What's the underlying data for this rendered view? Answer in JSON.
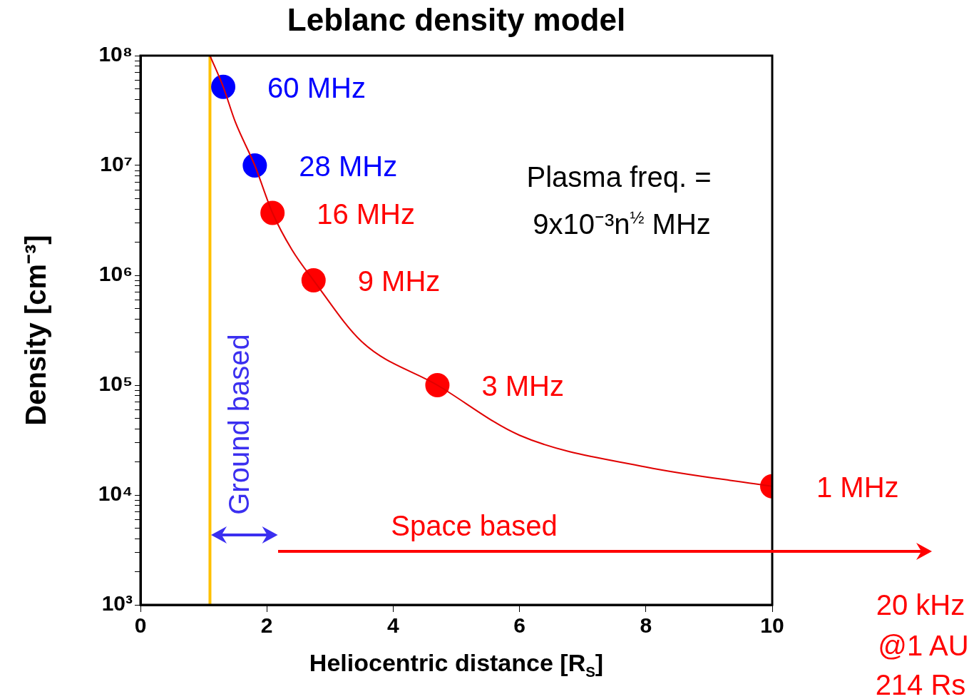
{
  "chart_data": {
    "type": "line",
    "title": "Leblanc density model",
    "xlabel": "Heliocentric distance [R$_{S}$]",
    "ylabel": "Density [cm⁻³]",
    "xlim": [
      0,
      10
    ],
    "xticks": [
      0,
      2,
      4,
      6,
      8,
      10
    ],
    "log": "y",
    "ylim": [
      1000,
      100000000
    ],
    "yticks": [
      {
        "value": 1000,
        "label": "10³"
      },
      {
        "value": 2000,
        "label": null
      },
      {
        "value": 3000,
        "label": null
      },
      {
        "value": 4000,
        "label": null
      },
      {
        "value": 5000,
        "label": null
      },
      {
        "value": 6000,
        "label": null
      },
      {
        "value": 7000,
        "label": null
      },
      {
        "value": 8000,
        "label": null
      },
      {
        "value": 9000,
        "label": null
      },
      {
        "value": 10000,
        "label": "10⁴"
      },
      {
        "value": 20000,
        "label": null
      },
      {
        "value": 30000,
        "label": null
      },
      {
        "value": 40000,
        "label": null
      },
      {
        "value": 50000,
        "label": null
      },
      {
        "value": 60000,
        "label": null
      },
      {
        "value": 70000,
        "label": null
      },
      {
        "value": 80000,
        "label": null
      },
      {
        "value": 90000,
        "label": null
      },
      {
        "value": 100000,
        "label": "10⁵"
      },
      {
        "value": 200000,
        "label": null
      },
      {
        "value": 300000,
        "label": null
      },
      {
        "value": 400000,
        "label": null
      },
      {
        "value": 500000,
        "label": null
      },
      {
        "value": 600000,
        "label": null
      },
      {
        "value": 700000,
        "label": null
      },
      {
        "value": 800000,
        "label": null
      },
      {
        "value": 900000,
        "label": null
      },
      {
        "value": 1000000,
        "label": "10⁶"
      },
      {
        "value": 2000000,
        "label": null
      },
      {
        "value": 3000000,
        "label": null
      },
      {
        "value": 4000000,
        "label": null
      },
      {
        "value": 5000000,
        "label": null
      },
      {
        "value": 6000000,
        "label": null
      },
      {
        "value": 7000000,
        "label": null
      },
      {
        "value": 8000000,
        "label": null
      },
      {
        "value": 9000000,
        "label": null
      },
      {
        "value": 10000000,
        "label": "10⁷"
      },
      {
        "value": 20000000,
        "label": null
      },
      {
        "value": 30000000,
        "label": null
      },
      {
        "value": 40000000,
        "label": null
      },
      {
        "value": 50000000,
        "label": null
      },
      {
        "value": 60000000,
        "label": null
      },
      {
        "value": 70000000,
        "label": null
      },
      {
        "value": 80000000,
        "label": null
      },
      {
        "value": 90000000,
        "label": null
      },
      {
        "value": 100000000,
        "label": "10⁸"
      }
    ],
    "series": [
      {
        "color": "#e00000",
        "marker": "none",
        "x": [
          1.1,
          1.31,
          1.5,
          1.81,
          2.09,
          2.4,
          2.74,
          3.5,
          4.7,
          6,
          8,
          10
        ],
        "values": [
          100000000,
          52000000,
          25000000,
          10000000,
          3700000,
          1700000,
          900000,
          250000,
          100000,
          35000,
          18000,
          12000
        ]
      },
      {
        "type": "scatter",
        "color": "#0000ff",
        "marker": "circle",
        "x": [
          1.31,
          1.81
        ],
        "values": [
          52000000,
          10000000
        ]
      },
      {
        "type": "scatter",
        "color": "#ff0000",
        "marker": "circle",
        "x": [
          2.09,
          2.74,
          4.7,
          10
        ],
        "values": [
          3700000,
          900000,
          100000,
          12000
        ]
      }
    ],
    "ref_lines": [
      {
        "axis": "x",
        "value": 1.1,
        "color": "#ffc000"
      }
    ],
    "annotations": [
      {
        "text": "60 MHz",
        "x": 1.31,
        "y": 52000000
      },
      {
        "text": "28 MHz",
        "x": 1.81,
        "y": 10000000
      },
      {
        "text": "16 MHz",
        "x": 2.09,
        "y": 3700000
      },
      {
        "text": "9 MHz",
        "x": 2.74,
        "y": 900000
      },
      {
        "text": "3 MHz",
        "x": 4.7,
        "y": 100000
      },
      {
        "text": "1 MHz",
        "x": 10,
        "y": 12000
      },
      "Plasma freq. =",
      "9x10⁻³n$^{½}$ MHz",
      "Ground based",
      "Space based",
      "20 kHz",
      "@1 AU",
      "214 Rs"
    ]
  }
}
